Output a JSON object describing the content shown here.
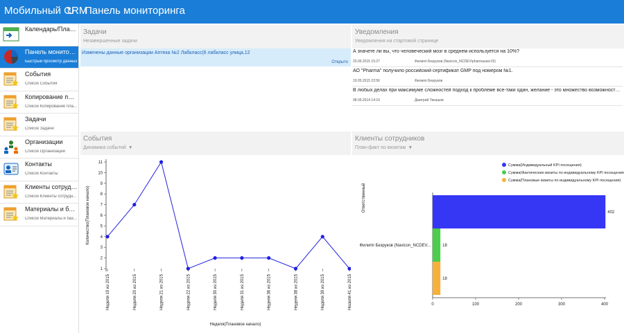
{
  "header": {
    "app_title": "Мобильный CRM",
    "page_title": "Панель мониторинга"
  },
  "sidebar": {
    "items": [
      {
        "label": "Календарь/Планир...",
        "sub": ""
      },
      {
        "label": "Панель мониторинга",
        "sub": "Быстрый просмотр данных"
      },
      {
        "label": "События",
        "sub": "Список События"
      },
      {
        "label": "Копирование плане...",
        "sub": "Список Копирование пла..."
      },
      {
        "label": "Задачи",
        "sub": "Список Задачи"
      },
      {
        "label": "Организации",
        "sub": "Список Организации"
      },
      {
        "label": "Контакты",
        "sub": "Список Контакты"
      },
      {
        "label": "Клиенты сотрудник...",
        "sub": "Список Клиенты сотрудн..."
      },
      {
        "label": "Материалы и база...",
        "sub": "Список Материалы и баз..."
      }
    ]
  },
  "tasks": {
    "title": "Задачи",
    "subtitle": "Незавершенные задачи",
    "rows": [
      {
        "text": "Изменены данные организации Аптека №2 Лабкласс(6 лабкласс улица,12",
        "status": "Открыто"
      }
    ]
  },
  "notifications": {
    "title": "Уведомления",
    "subtitle": "Уведомления на стартовой странице",
    "rows": [
      {
        "text": "А значете ли вы, что человеческий мозг в среднем используется на 10%?",
        "date": "20.05.2015 15:27",
        "author": "Филипп Безруков (Navicon_NCDEV\\pharmauser15)"
      },
      {
        "text": "АО \"Pharma\" получило российский сертификат GMP под номером №1.",
        "date": "19.05.2015 22:56",
        "author": "Филипп Безруков"
      },
      {
        "text": "В любых делах при максимуме сложностей подход к проблеме все-таки один, желание - это множество возможностей, а нежела ...",
        "date": "08.09.2014 14:10",
        "author": "Дмитрий Тикашов"
      }
    ]
  },
  "events": {
    "title": "События",
    "subtitle": "Динамика событий"
  },
  "clients": {
    "title": "Клиенты сотрудников",
    "subtitle": "План-факт по визитам"
  },
  "colors": {
    "accent": "#1a7ed8",
    "line": "#2020e0",
    "bar_blue": "#3636f5",
    "bar_green": "#4ccd4c",
    "bar_orange": "#f7b13a"
  },
  "chart_data": [
    {
      "type": "line",
      "categories": [
        "Неделя 19 из 2015",
        "Неделя 20 из 2015",
        "Неделя 21 из 2015",
        "Неделя 22 из 2015",
        "Неделя 30 из 2015",
        "Неделя 31 из 2015",
        "Неделя 36 из 2015",
        "Неделя 38 из 2015",
        "Неделя 39 из 2015",
        "Неделя 41 из 2015"
      ],
      "values": [
        4,
        7,
        11,
        1,
        2,
        2,
        2,
        1,
        4,
        1
      ],
      "xlabel": "Неделя(Плановое начало)",
      "ylabel": "Количество(Плановое начало)",
      "yticks": [
        1,
        2,
        3,
        4,
        5,
        6,
        7,
        8,
        9,
        10,
        11
      ],
      "ylim": [
        1,
        11
      ]
    },
    {
      "type": "bar",
      "orientation": "horizontal",
      "categories": [
        "Филипп Безруков (Navicon_NCDEV..."
      ],
      "ylabel": "Ответственный",
      "xticks": [
        0,
        100,
        200,
        300,
        400
      ],
      "xlim": [
        0,
        400
      ],
      "legend_position": "top-right",
      "series": [
        {
          "name": "Сумма(Индивидуальный KPI посещения)",
          "values": [
            402
          ],
          "color": "#3636f5"
        },
        {
          "name": "Сумма(Фактические визиты по индивидуальному KPI посещения)",
          "values": [
            18
          ],
          "color": "#4ccd4c"
        },
        {
          "name": "Сумма(Плановые визиты по индивидуальному KPI посещения)",
          "values": [
            18
          ],
          "color": "#f7b13a"
        }
      ]
    }
  ]
}
